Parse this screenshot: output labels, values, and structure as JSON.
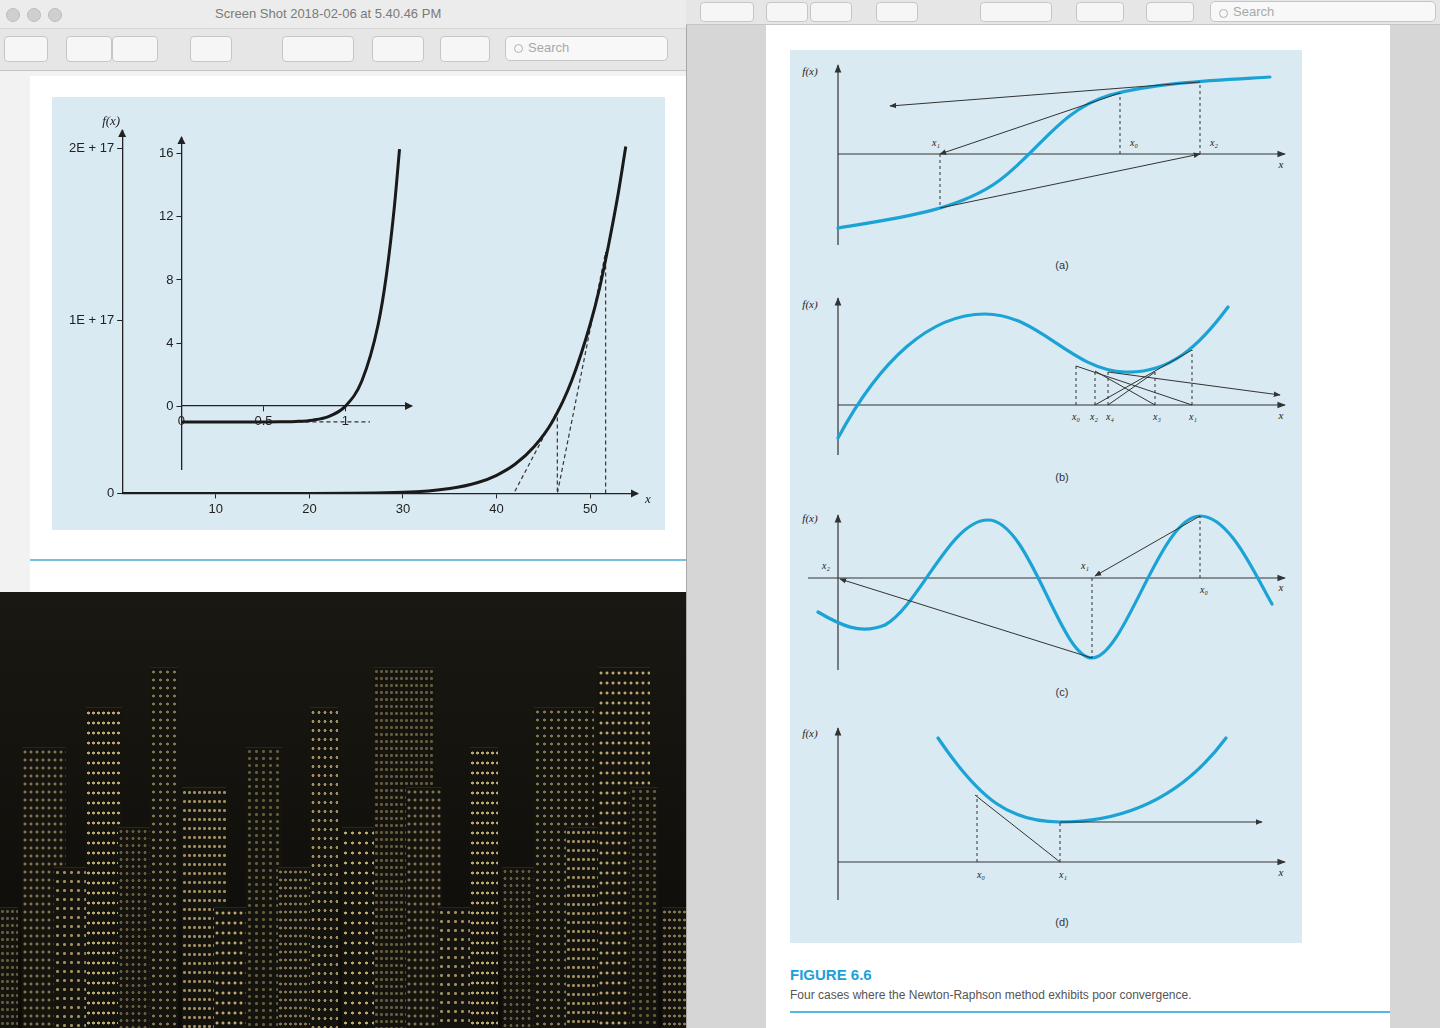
{
  "left_window": {
    "title": "Screen Shot 2018-02-06 at 5.40.46 PM",
    "search": "Search"
  },
  "right_window": {
    "search": "Search"
  },
  "chart_data": [
    {
      "type": "line",
      "x_label": "x",
      "y_label": "f(x)",
      "color": "#1a1a1a",
      "x": [
        0,
        10,
        20,
        30,
        35,
        38,
        40,
        42,
        44,
        46,
        48,
        50,
        51,
        52,
        53,
        53.8
      ],
      "values": [
        0,
        0,
        0,
        600000000000000.0,
        2800000000000000.0,
        6300000000000000.0,
        1.05e+16,
        1.7e+16,
        2.7e+16,
        4.2e+16,
        6.5e+16,
        9.8e+16,
        1.19e+17,
        1.45e+17,
        1.74e+17,
        2.01e+17
      ],
      "steps": {
        "x": [
          51.65,
          51.65,
          46.49,
          46.49,
          41.84
        ],
        "values": [
          0,
          1.4e+17,
          0,
          4.8e+16,
          0
        ],
        "line_style": "dashed",
        "color": "#333333"
      },
      "xlim": [
        0,
        55
      ],
      "xticks": [
        10,
        20,
        30,
        40,
        50
      ],
      "ylim": [
        0,
        2.1e+17
      ],
      "yticks": [
        0,
        {
          "value": 1e+17,
          "label": "1E + 17"
        },
        {
          "value": 2e+17,
          "label": "2E + 17"
        }
      ],
      "grid": false
    },
    {
      "type": "line",
      "color": "#1a1a1a",
      "x": [
        0,
        0.2,
        0.4,
        0.5,
        0.6,
        0.7,
        0.8,
        0.9,
        1,
        1.1,
        1.2,
        1.25,
        1.3,
        1.33
      ],
      "values": [
        -1,
        -1,
        -1,
        -1,
        -0.99,
        -0.97,
        -0.89,
        -0.65,
        0,
        1.59,
        5.19,
        8.31,
        12.79,
        16.3
      ],
      "steps": {
        "x": [
          0.5,
          1.15
        ],
        "values": [
          -1,
          -1
        ],
        "line_style": "dashed",
        "color": "#333333"
      },
      "xlim": [
        0,
        1.4
      ],
      "xticks": [
        0,
        0.5,
        1
      ],
      "ylim": [
        -4,
        17
      ],
      "yticks": [
        0,
        4,
        8,
        12,
        16
      ],
      "grid": false
    }
  ],
  "figure": {
    "label": "FIGURE 6.6",
    "caption": "Four cases where the Newton-Raphson method exhibits poor convergence.",
    "panels": [
      {
        "label": "(a)",
        "y_label": "f(x)",
        "x_label": "x",
        "points": [
          "x₁",
          "x₀",
          "x₂"
        ]
      },
      {
        "label": "(b)",
        "y_label": "f(x)",
        "x_label": "x",
        "points": [
          "x₀",
          "x₂",
          "x₄",
          "x₃",
          "x₁"
        ]
      },
      {
        "label": "(c)",
        "y_label": "f(x)",
        "x_label": "x",
        "points": [
          "x₂",
          "x₁",
          "x₀"
        ]
      },
      {
        "label": "(d)",
        "y_label": "f(x)",
        "x_label": "x",
        "points": [
          "x₀",
          "x₁"
        ]
      }
    ]
  }
}
